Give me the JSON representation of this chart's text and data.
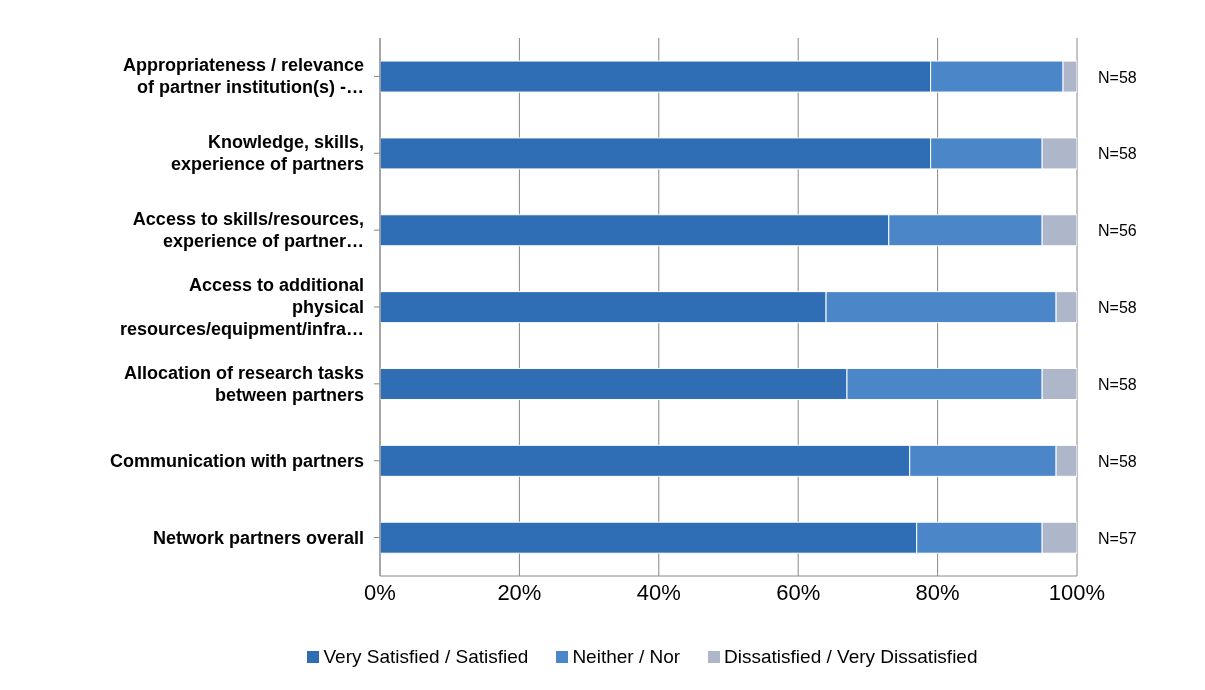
{
  "chart_data": {
    "type": "bar",
    "orientation": "horizontal",
    "stacked": true,
    "categories": [
      "Appropriateness / relevance of partner institution(s) -…",
      "Knowledge, skills, experience of partners",
      "Access to skills/resources, experience of partner…",
      "Access to additional physical resources/equipment/infra…",
      "Allocation of research tasks between partners",
      "Communication with partners",
      "Network partners overall"
    ],
    "series": [
      {
        "name": "Very Satisfied / Satisfied",
        "color": "#2f6db5",
        "values": [
          79,
          79,
          73,
          64,
          67,
          76,
          77
        ]
      },
      {
        "name": "Neither / Nor",
        "color": "#4a86c8",
        "values": [
          19,
          16,
          22,
          33,
          28,
          21,
          18
        ]
      },
      {
        "name": "Dissatisfied / Very Dissatisfied",
        "color": "#aeb6ca",
        "values": [
          2,
          5,
          5,
          3,
          5,
          3,
          5
        ]
      }
    ],
    "xlim": [
      0,
      100
    ],
    "xticks": [
      {
        "value": 0,
        "label": "0%"
      },
      {
        "value": 20,
        "label": "20%"
      },
      {
        "value": 40,
        "label": "40%"
      },
      {
        "value": 60,
        "label": "60%"
      },
      {
        "value": 80,
        "label": "80%"
      },
      {
        "value": 100,
        "label": "100%"
      }
    ],
    "grid": "x",
    "legend": "bottom",
    "annotations": [
      "N=58",
      "N=58",
      "N=56",
      "N=58",
      "N=58",
      "N=58",
      "N=57"
    ]
  }
}
